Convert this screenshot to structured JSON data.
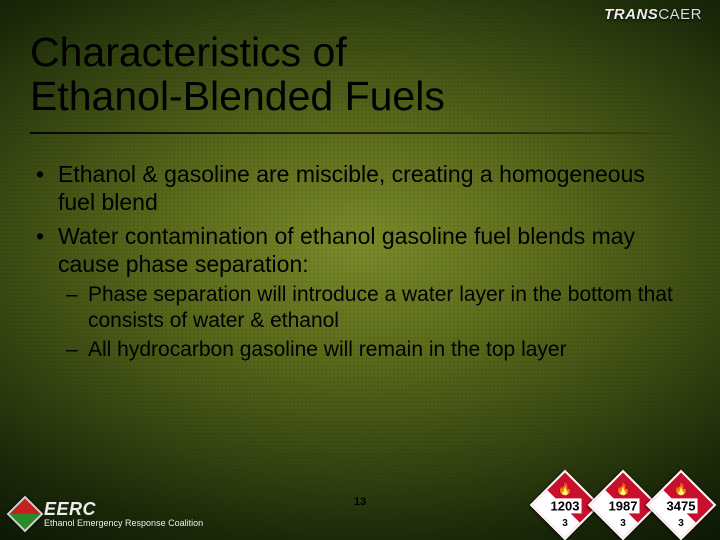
{
  "slide": {
    "title_line1": "Characteristics of",
    "title_line2": "Ethanol-Blended Fuels",
    "page_number": "13",
    "background_colors": {
      "center": "#7a8a2a",
      "mid": "#3a4a12",
      "edge": "#0a1404"
    }
  },
  "top_logo": {
    "part1": "TRANS",
    "part2": "CAER"
  },
  "bullets": [
    {
      "text": "Ethanol & gasoline are miscible, creating a homogeneous fuel blend",
      "sub": []
    },
    {
      "text": "Water contamination of ethanol gasoline fuel blends may cause phase separation:",
      "sub": [
        "Phase separation will introduce a water layer in the bottom that consists of water & ethanol",
        "All hydrocarbon gasoline will remain in the top layer"
      ]
    }
  ],
  "bottom_left_logo": {
    "acronym": "EERC",
    "subtitle": "Ethanol Emergency Response Coalition"
  },
  "placards": [
    {
      "un_number": "1203",
      "hazard_class": "3",
      "color": "#c8102e",
      "symbol": "flame"
    },
    {
      "un_number": "1987",
      "hazard_class": "3",
      "color": "#c8102e",
      "symbol": "flame"
    },
    {
      "un_number": "3475",
      "hazard_class": "3",
      "color": "#c8102e",
      "symbol": "flame"
    }
  ]
}
